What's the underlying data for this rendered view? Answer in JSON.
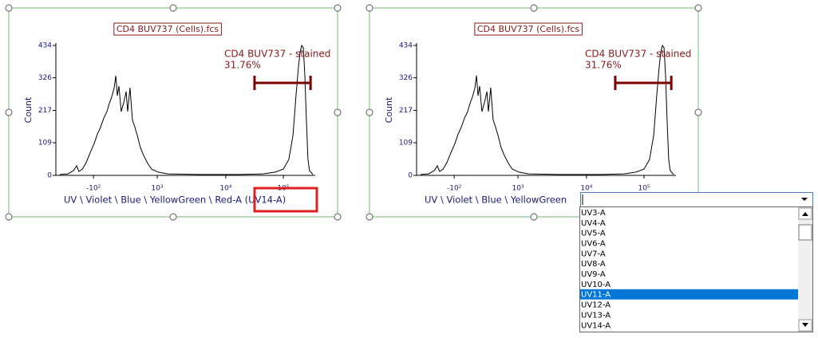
{
  "plots": [
    {
      "title": "CD4 BUV737 (Cells).fcs",
      "y_label": "Count",
      "x_label": "UV \\ Violet \\ Blue \\ YellowGreen \\ Red-A (UV14-A)",
      "ylim": [
        0,
        434
      ],
      "yticks": [
        0,
        109,
        217,
        326,
        434
      ],
      "xlim": [
        0,
        1000
      ],
      "xticks": [
        {
          "value": 145,
          "label": "-10²"
        },
        {
          "value": 391,
          "label": "10³"
        },
        {
          "value": 655,
          "label": "10⁴"
        },
        {
          "value": 877,
          "label": "10⁵"
        }
      ],
      "x": [
        15,
        46,
        68,
        80,
        89,
        102,
        117,
        132,
        148,
        160,
        172,
        185,
        197,
        206,
        215,
        225,
        231,
        237,
        243,
        252,
        262,
        271,
        277,
        286,
        295,
        305,
        314,
        326,
        338,
        354,
        369,
        394,
        431,
        554,
        708,
        800,
        846,
        877,
        898,
        914,
        926,
        935,
        942,
        948,
        954,
        960,
        966,
        972,
        978,
        991
      ],
      "values": [
        3,
        5,
        16,
        32,
        13,
        21,
        43,
        75,
        107,
        138,
        160,
        192,
        213,
        240,
        261,
        293,
        333,
        266,
        298,
        213,
        245,
        280,
        213,
        293,
        186,
        160,
        133,
        93,
        67,
        40,
        21,
        11,
        5,
        3,
        3,
        5,
        11,
        21,
        53,
        133,
        266,
        360,
        413,
        434,
        426,
        333,
        186,
        53,
        16,
        3
      ],
      "gate": {
        "name": "CD4 BUV737 - stained",
        "frequency": "31.76%",
        "range": [
          766,
          982
        ]
      },
      "highlight": "UV14-A"
    },
    {
      "title": "CD4 BUV737 (Cells).fcs",
      "y_label": "Count",
      "x_label": "UV \\ Violet \\ Blue \\ YellowGreen",
      "ylim": [
        0,
        434
      ],
      "yticks": [
        0,
        109,
        217,
        326,
        434
      ],
      "xlim": [
        0,
        1000
      ],
      "xticks": [
        {
          "value": 145,
          "label": "-10²"
        },
        {
          "value": 391,
          "label": "10³"
        },
        {
          "value": 655,
          "label": "10⁴"
        },
        {
          "value": 877,
          "label": "10⁵"
        }
      ],
      "x": [
        15,
        46,
        68,
        80,
        89,
        102,
        117,
        132,
        148,
        160,
        172,
        185,
        197,
        206,
        215,
        225,
        231,
        237,
        243,
        252,
        262,
        271,
        277,
        286,
        295,
        305,
        314,
        326,
        338,
        354,
        369,
        394,
        431,
        554,
        708,
        800,
        846,
        877,
        898,
        914,
        926,
        935,
        942,
        948,
        954,
        960,
        966,
        972,
        978,
        991
      ],
      "values": [
        3,
        5,
        16,
        32,
        13,
        21,
        43,
        75,
        107,
        138,
        160,
        192,
        213,
        240,
        261,
        293,
        333,
        266,
        298,
        213,
        245,
        280,
        213,
        293,
        186,
        160,
        133,
        93,
        67,
        40,
        21,
        11,
        5,
        3,
        3,
        5,
        11,
        21,
        53,
        133,
        266,
        360,
        413,
        434,
        426,
        333,
        186,
        53,
        16,
        3
      ],
      "gate": {
        "name": "CD4 BUV737 - stained",
        "frequency": "31.76%",
        "range": [
          766,
          982
        ]
      }
    }
  ],
  "dropdown": {
    "items": [
      "UV3-A",
      "UV4-A",
      "UV5-A",
      "UV6-A",
      "UV7-A",
      "UV8-A",
      "UV9-A",
      "UV10-A",
      "UV11-A",
      "UV12-A",
      "UV13-A",
      "UV14-A"
    ],
    "selected": 8
  }
}
